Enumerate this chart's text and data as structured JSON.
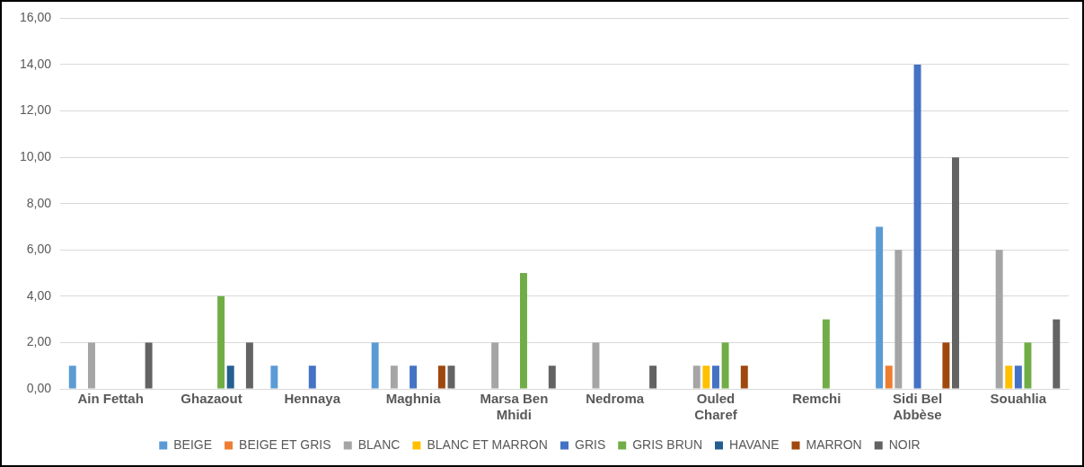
{
  "chart_data": {
    "type": "bar",
    "categories": [
      "Ain Fettah",
      "Ghazaout",
      "Hennaya",
      "Maghnia",
      "Marsa Ben Mhidi",
      "Nedroma",
      "Ouled Charef",
      "Remchi",
      "Sidi Bel Abbèse",
      "Souahlia"
    ],
    "series": [
      {
        "name": "BEIGE",
        "color": "#5b9bd5",
        "values": [
          1,
          0,
          1,
          2,
          0,
          0,
          0,
          0,
          7,
          0
        ]
      },
      {
        "name": "BEIGE ET GRIS",
        "color": "#ed7d31",
        "values": [
          0,
          0,
          0,
          0,
          0,
          0,
          0,
          0,
          1,
          0
        ]
      },
      {
        "name": "BLANC",
        "color": "#a5a5a5",
        "values": [
          2,
          0,
          0,
          1,
          2,
          2,
          1,
          0,
          6,
          6
        ]
      },
      {
        "name": "BLANC ET MARRON",
        "color": "#ffc000",
        "values": [
          0,
          0,
          0,
          0,
          0,
          0,
          1,
          0,
          0,
          1
        ]
      },
      {
        "name": "GRIS",
        "color": "#4472c4",
        "values": [
          0,
          0,
          1,
          1,
          0,
          0,
          1,
          0,
          14,
          1
        ]
      },
      {
        "name": "GRIS BRUN",
        "color": "#70ad47",
        "values": [
          0,
          4,
          0,
          0,
          5,
          0,
          2,
          3,
          0,
          2
        ]
      },
      {
        "name": "HAVANE",
        "color": "#255e91",
        "values": [
          0,
          1,
          0,
          0,
          0,
          0,
          0,
          0,
          0,
          0
        ]
      },
      {
        "name": "MARRON",
        "color": "#9e480e",
        "values": [
          0,
          0,
          0,
          1,
          0,
          0,
          1,
          0,
          2,
          0
        ]
      },
      {
        "name": "NOIR",
        "color": "#636363",
        "values": [
          2,
          2,
          0,
          1,
          1,
          1,
          0,
          0,
          10,
          3
        ]
      }
    ],
    "ylim": [
      0,
      16
    ],
    "yticks": [
      {
        "value": 0,
        "label": "0,00"
      },
      {
        "value": 2,
        "label": "2,00"
      },
      {
        "value": 4,
        "label": "4,00"
      },
      {
        "value": 6,
        "label": "6,00"
      },
      {
        "value": 8,
        "label": "8,00"
      },
      {
        "value": 10,
        "label": "10,00"
      },
      {
        "value": 12,
        "label": "12,00"
      },
      {
        "value": 14,
        "label": "14,00"
      },
      {
        "value": 16,
        "label": "16,00"
      }
    ],
    "grid": "y",
    "legend": "bottom"
  }
}
